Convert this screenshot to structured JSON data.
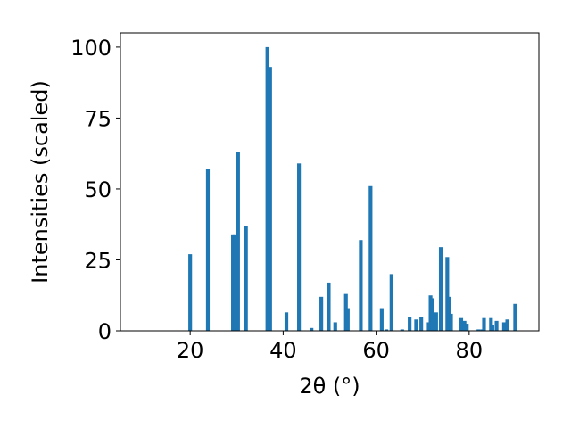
{
  "chart_data": {
    "type": "bar",
    "xlabel": "2θ (°)",
    "ylabel": "Intensities (scaled)",
    "xlim": [
      5,
      95
    ],
    "ylim": [
      0,
      105
    ],
    "xticks": [
      20,
      40,
      60,
      80
    ],
    "yticks": [
      0,
      25,
      50,
      75,
      100
    ],
    "grid": false,
    "color": "#1f77b4",
    "bar_width": 0.8,
    "series": [
      {
        "x": [
          20.0,
          23.8,
          29.2,
          29.6,
          30.3,
          32.0,
          36.6,
          37.2,
          40.7,
          43.4,
          46.1,
          48.2,
          49.8,
          51.2,
          53.5,
          53.9,
          56.7,
          58.8,
          61.2,
          62.2,
          63.3,
          65.6,
          67.2,
          68.6,
          69.7,
          71.3,
          71.7,
          72.1,
          72.9,
          73.9,
          75.3,
          75.7,
          76.1,
          78.3,
          79.0,
          79.5,
          82.0,
          82.8,
          83.2,
          84.7,
          85.0,
          85.9,
          87.5,
          88.2,
          89.9
        ],
        "y": [
          27,
          57,
          34,
          34,
          63,
          37,
          100,
          93,
          6.5,
          59,
          1,
          12,
          17,
          3,
          13,
          8,
          32,
          51,
          8,
          0.5,
          20,
          0.5,
          5,
          4,
          5,
          3,
          12.5,
          11.5,
          6.5,
          29.5,
          26,
          12,
          6,
          4.5,
          3.5,
          2.5,
          0.5,
          0.5,
          4.5,
          4.5,
          2,
          3.5,
          3,
          4,
          9.5
        ]
      }
    ]
  }
}
